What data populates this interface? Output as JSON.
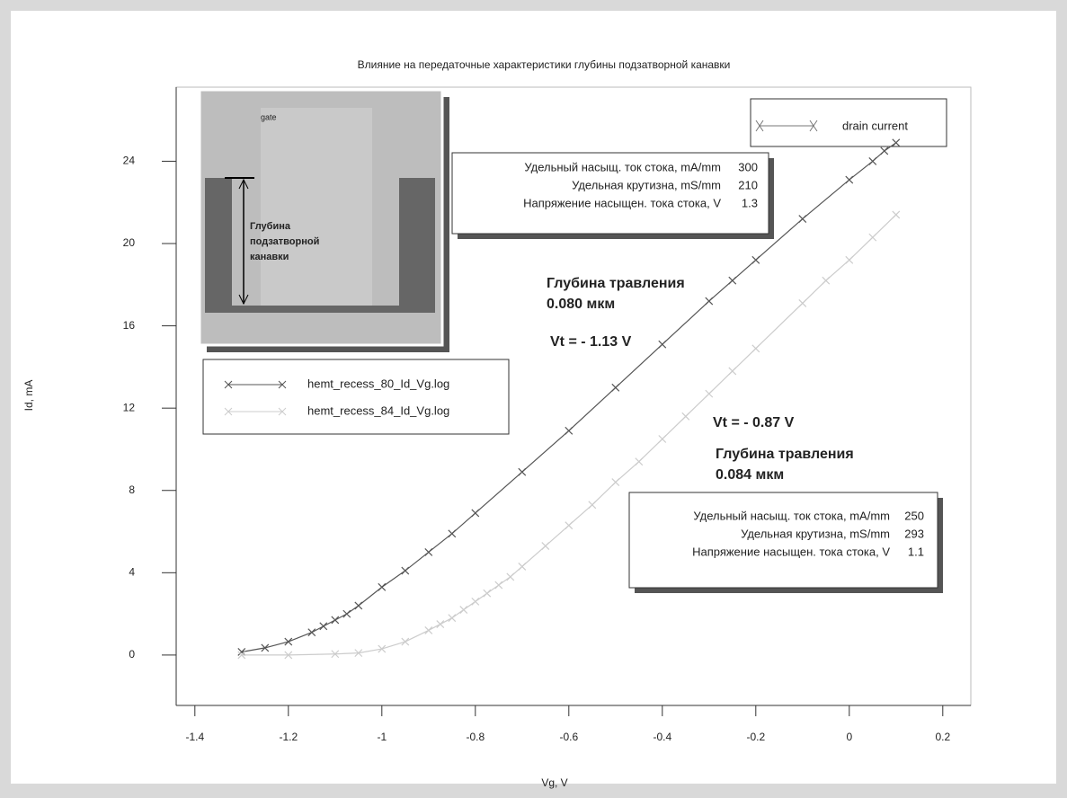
{
  "chart_data": {
    "type": "line",
    "title": "Влияние на передаточные характеристики глубины подзатворной канавки",
    "x_label": "Vg, V",
    "y_label": "Id, mA",
    "xlim": [
      -1.44,
      0.26
    ],
    "ylim": [
      -2.45,
      27.6
    ],
    "xticks": [
      -1.4,
      -1.2,
      -1,
      -0.8,
      -0.6,
      -0.4,
      -0.2,
      0,
      0.2
    ],
    "yticks": [
      0,
      4,
      8,
      12,
      16,
      20,
      24
    ],
    "style_legend": "drain current",
    "series": [
      {
        "name": "hemt_recess_80_Id_Vg.log",
        "color": "#555555",
        "x": [
          -1.3,
          -1.25,
          -1.2,
          -1.15,
          -1.125,
          -1.1,
          -1.075,
          -1.05,
          -1.0,
          -0.95,
          -0.9,
          -0.85,
          -0.8,
          -0.7,
          -0.6,
          -0.5,
          -0.4,
          -0.3,
          -0.25,
          -0.2,
          -0.1,
          0,
          0.05,
          0.075,
          0.1
        ],
        "values": [
          0.15,
          0.35,
          0.65,
          1.1,
          1.4,
          1.7,
          2.0,
          2.4,
          3.3,
          4.1,
          5.0,
          5.9,
          6.9,
          8.9,
          10.9,
          13.0,
          15.1,
          17.2,
          18.2,
          19.2,
          21.2,
          23.1,
          24.0,
          24.5,
          24.9
        ]
      },
      {
        "name": "hemt_recess_84_Id_Vg.log",
        "color": "#cccccc",
        "x": [
          -1.3,
          -1.2,
          -1.1,
          -1.05,
          -1.0,
          -0.95,
          -0.9,
          -0.875,
          -0.85,
          -0.825,
          -0.8,
          -0.775,
          -0.75,
          -0.725,
          -0.7,
          -0.65,
          -0.6,
          -0.55,
          -0.5,
          -0.45,
          -0.4,
          -0.35,
          -0.3,
          -0.25,
          -0.2,
          -0.1,
          -0.05,
          0,
          0.05,
          0.1
        ],
        "values": [
          0,
          0,
          0.05,
          0.1,
          0.3,
          0.65,
          1.2,
          1.5,
          1.8,
          2.2,
          2.6,
          3.0,
          3.4,
          3.8,
          4.3,
          5.3,
          6.3,
          7.3,
          8.4,
          9.4,
          10.5,
          11.6,
          12.7,
          13.8,
          14.9,
          17.1,
          18.2,
          19.2,
          20.3,
          21.4
        ]
      }
    ],
    "annotations": [
      "Глубина травления",
      "0.080 мкм",
      "Vt = - 1.13 V",
      "Vt = - 0.87 V",
      "Глубина травления",
      "0.084 мкм"
    ],
    "param_tables": [
      {
        "rows": [
          {
            "label": "Удельный насыщ. ток стока, mA/mm",
            "value": 300
          },
          {
            "label": "Удельная крутизна, mS/mm",
            "value": 210
          },
          {
            "label": "Напряжение насыщен. тока стока, V",
            "value": 1.3
          }
        ]
      },
      {
        "rows": [
          {
            "label": "Удельный насыщ. ток стока, mA/mm",
            "value": 250
          },
          {
            "label": "Удельная крутизна, mS/mm",
            "value": 293
          },
          {
            "label": "Напряжение насыщен. тока стока, V",
            "value": 1.1
          }
        ]
      }
    ],
    "inset": {
      "gate_label": "gate",
      "depth_label": [
        "Глубина",
        "подзатворной",
        "канавки"
      ]
    }
  }
}
